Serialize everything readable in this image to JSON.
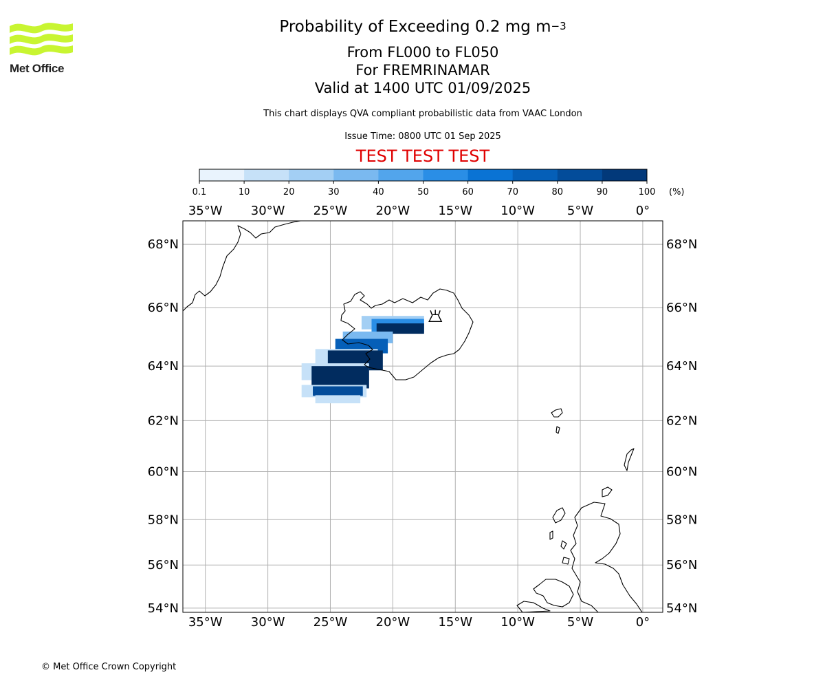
{
  "logo": {
    "text": "Met Office",
    "color": "#c8f531"
  },
  "title": {
    "main_prefix": "Probability of Exceeding 0.2 mg m",
    "main_exponent": "−3",
    "level_range": "From FL000 to FL050",
    "for_line": "For FREMRINAMAR",
    "valid_line": "Valid at 1400 UTC 01/09/2025"
  },
  "subtitle": "This chart displays QVA compliant probabilistic data from VAAC London",
  "issue_time": "Issue Time: 0800 UTC 01 Sep 2025",
  "test_banner": "TEST TEST TEST",
  "colorbar": {
    "ticks": [
      "0.1",
      "10",
      "20",
      "30",
      "40",
      "50",
      "60",
      "70",
      "80",
      "90",
      "100"
    ],
    "unit": "(%)",
    "colors": [
      "#e9f3fd",
      "#c6e1f8",
      "#a3cff4",
      "#7ab9f0",
      "#52a5ec",
      "#2a8ee6",
      "#0a73d4",
      "#055fb8",
      "#034c9a",
      "#02397a",
      "#012c5f"
    ]
  },
  "map": {
    "lon_range": [
      -36.8,
      1.6
    ],
    "lat_range": [
      53.8,
      68.7
    ],
    "lon_ticks": [
      -35,
      -30,
      -25,
      -20,
      -15,
      -10,
      -5,
      0
    ],
    "lon_labels": [
      "35°W",
      "30°W",
      "25°W",
      "20°W",
      "15°W",
      "10°W",
      "5°W",
      "0°"
    ],
    "lat_ticks": [
      68,
      66,
      64,
      62,
      60,
      58,
      56,
      54
    ],
    "lat_labels": [
      "68°N",
      "66°N",
      "64°N",
      "62°N",
      "60°N",
      "58°N",
      "56°N",
      "54°N"
    ],
    "gridlines": true,
    "volcano": {
      "lon": -16.6,
      "lat": 65.7,
      "icon": "volcano-icon"
    },
    "plume_cells": [
      {
        "lon": -20.0,
        "lat": 65.5,
        "lon_span": 5.0,
        "lat_span": 0.45,
        "level": 2
      },
      {
        "lon": -19.6,
        "lat": 65.4,
        "lon_span": 4.2,
        "lat_span": 0.45,
        "level": 5
      },
      {
        "lon": -19.4,
        "lat": 65.3,
        "lon_span": 3.8,
        "lat_span": 0.35,
        "level": 10
      },
      {
        "lon": -22.0,
        "lat": 65.0,
        "lon_span": 4.0,
        "lat_span": 0.4,
        "level": 3
      },
      {
        "lon": -22.5,
        "lat": 64.7,
        "lon_span": 4.2,
        "lat_span": 0.5,
        "level": 7
      },
      {
        "lon": -23.7,
        "lat": 64.3,
        "lon_span": 5.0,
        "lat_span": 0.6,
        "level": 1
      },
      {
        "lon": -23.0,
        "lat": 64.2,
        "lon_span": 4.4,
        "lat_span": 0.7,
        "level": 10
      },
      {
        "lon": -24.6,
        "lat": 63.8,
        "lon_span": 5.4,
        "lat_span": 0.6,
        "level": 1
      },
      {
        "lon": -24.2,
        "lat": 63.6,
        "lon_span": 4.6,
        "lat_span": 0.8,
        "level": 10
      },
      {
        "lon": -24.7,
        "lat": 63.1,
        "lon_span": 5.2,
        "lat_span": 0.45,
        "level": 1
      },
      {
        "lon": -24.4,
        "lat": 63.1,
        "lon_span": 4.0,
        "lat_span": 0.35,
        "level": 8
      },
      {
        "lon": -24.4,
        "lat": 62.8,
        "lon_span": 3.6,
        "lat_span": 0.3,
        "level": 1
      }
    ],
    "coastline": "black"
  },
  "copyright": "© Met Office Crown Copyright"
}
